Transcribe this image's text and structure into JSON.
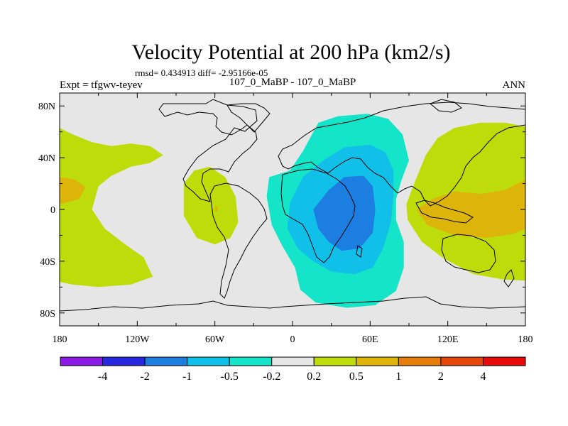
{
  "chart_data": {
    "type": "heatmap",
    "title": "Velocity Potential at 200 hPa (km2/s)",
    "stats_line": "rmsd= 0.434913 diff= -2.95166e-05",
    "subtitle": "107_0_MaBP - 107_0_MaBP",
    "left_label": "Expt = tfgwv-teyev",
    "right_label": "ANN",
    "lon_range": [
      -180,
      180
    ],
    "lat_range": [
      -90,
      90
    ],
    "x_ticks": [
      {
        "value": -180,
        "label": "180"
      },
      {
        "value": -120,
        "label": "120W"
      },
      {
        "value": -60,
        "label": "60W"
      },
      {
        "value": 0,
        "label": "0"
      },
      {
        "value": 60,
        "label": "60E"
      },
      {
        "value": 120,
        "label": "120E"
      },
      {
        "value": 180,
        "label": "180"
      }
    ],
    "y_ticks": [
      {
        "value": 80,
        "label": "80N"
      },
      {
        "value": 40,
        "label": "40N"
      },
      {
        "value": 0,
        "label": "0"
      },
      {
        "value": -40,
        "label": "40S"
      },
      {
        "value": -80,
        "label": "80S"
      }
    ],
    "colorbar": {
      "colors": [
        "#8c1ae6",
        "#2727e0",
        "#1c7ee0",
        "#10c0e8",
        "#14e4c8",
        "#e6e6e6",
        "#bedc0a",
        "#dcb40a",
        "#e67d0a",
        "#e6460a",
        "#e60a0a"
      ],
      "levels": [
        "-4",
        "-2",
        "-1",
        "-0.5",
        "-0.2",
        "0.2",
        "0.5",
        "1",
        "2",
        "4"
      ]
    },
    "regions": [
      {
        "level": "0.2 to 0.5",
        "color": "#bedc0a",
        "polygon": [
          [
            -180,
            63
          ],
          [
            -170,
            58
          ],
          [
            -155,
            52
          ],
          [
            -140,
            49
          ],
          [
            -125,
            51
          ],
          [
            -110,
            49
          ],
          [
            -100,
            42
          ],
          [
            -110,
            36
          ],
          [
            -125,
            33
          ],
          [
            -140,
            26
          ],
          [
            -150,
            18
          ],
          [
            -155,
            0
          ],
          [
            -145,
            -15
          ],
          [
            -128,
            -28
          ],
          [
            -115,
            -37
          ],
          [
            -108,
            -52
          ],
          [
            -125,
            -58
          ],
          [
            -150,
            -60
          ],
          [
            -170,
            -58
          ],
          [
            -180,
            -56
          ]
        ]
      },
      {
        "level": "0.2 to 0.5",
        "color": "#bedc0a",
        "polygon": [
          [
            -84,
            20
          ],
          [
            -76,
            30
          ],
          [
            -64,
            33
          ],
          [
            -52,
            25
          ],
          [
            -44,
            10
          ],
          [
            -42,
            -10
          ],
          [
            -48,
            -22
          ],
          [
            -60,
            -27
          ],
          [
            -74,
            -22
          ],
          [
            -84,
            -5
          ]
        ]
      },
      {
        "level": "0.2 to 0.5",
        "color": "#bedc0a",
        "polygon": [
          [
            180,
            64
          ],
          [
            165,
            67
          ],
          [
            145,
            67
          ],
          [
            125,
            63
          ],
          [
            112,
            55
          ],
          [
            103,
            42
          ],
          [
            94,
            20
          ],
          [
            88,
            4
          ],
          [
            89,
            -8
          ],
          [
            100,
            -25
          ],
          [
            117,
            -38
          ],
          [
            140,
            -50
          ],
          [
            162,
            -54
          ],
          [
            180,
            -55
          ]
        ]
      },
      {
        "level": "0.5 to 1",
        "color": "#dcb40a",
        "polygon": [
          [
            180,
            23
          ],
          [
            164,
            15
          ],
          [
            145,
            12
          ],
          [
            125,
            14
          ],
          [
            108,
            8
          ],
          [
            96,
            0
          ],
          [
            104,
            -12
          ],
          [
            125,
            -20
          ],
          [
            150,
            -22
          ],
          [
            170,
            -19
          ],
          [
            180,
            -15
          ]
        ]
      },
      {
        "level": "0.5 to 1",
        "color": "#dcb40a",
        "polygon": [
          [
            -180,
            25
          ],
          [
            -168,
            23
          ],
          [
            -160,
            17
          ],
          [
            -165,
            8
          ],
          [
            -180,
            4
          ]
        ]
      },
      {
        "level": "0.5 to 1",
        "color": "#dcb40a",
        "polygon": [
          [
            -60,
            3
          ],
          [
            -58,
            2
          ],
          [
            -58,
            -1
          ],
          [
            -60,
            -2
          ]
        ]
      },
      {
        "level": "-0.5 to -0.2",
        "color": "#14e4c8",
        "polygon": [
          [
            20,
            67
          ],
          [
            35,
            72
          ],
          [
            58,
            74
          ],
          [
            74,
            70
          ],
          [
            85,
            58
          ],
          [
            90,
            38
          ],
          [
            84,
            22
          ],
          [
            80,
            8
          ],
          [
            80,
            -8
          ],
          [
            86,
            -25
          ],
          [
            86,
            -45
          ],
          [
            80,
            -63
          ],
          [
            64,
            -74
          ],
          [
            42,
            -76
          ],
          [
            18,
            -72
          ],
          [
            6,
            -62
          ],
          [
            2,
            -45
          ],
          [
            -8,
            -28
          ],
          [
            -16,
            -12
          ],
          [
            -20,
            10
          ],
          [
            -18,
            25
          ],
          [
            -2,
            30
          ],
          [
            8,
            45
          ]
        ]
      },
      {
        "level": "-1 to -0.5",
        "color": "#10c0e8",
        "polygon": [
          [
            24,
            38
          ],
          [
            40,
            48
          ],
          [
            60,
            50
          ],
          [
            72,
            44
          ],
          [
            78,
            30
          ],
          [
            78,
            10
          ],
          [
            76,
            -10
          ],
          [
            70,
            -30
          ],
          [
            62,
            -45
          ],
          [
            48,
            -50
          ],
          [
            30,
            -48
          ],
          [
            16,
            -40
          ],
          [
            4,
            -30
          ],
          [
            -4,
            -15
          ],
          [
            -2,
            5
          ],
          [
            8,
            25
          ]
        ]
      },
      {
        "level": "-2 to -1",
        "color": "#1c7ee0",
        "polygon": [
          [
            28,
            15
          ],
          [
            40,
            25
          ],
          [
            55,
            26
          ],
          [
            62,
            18
          ],
          [
            64,
            0
          ],
          [
            62,
            -18
          ],
          [
            52,
            -30
          ],
          [
            38,
            -32
          ],
          [
            28,
            -25
          ],
          [
            20,
            -15
          ],
          [
            16,
            0
          ]
        ]
      }
    ]
  }
}
